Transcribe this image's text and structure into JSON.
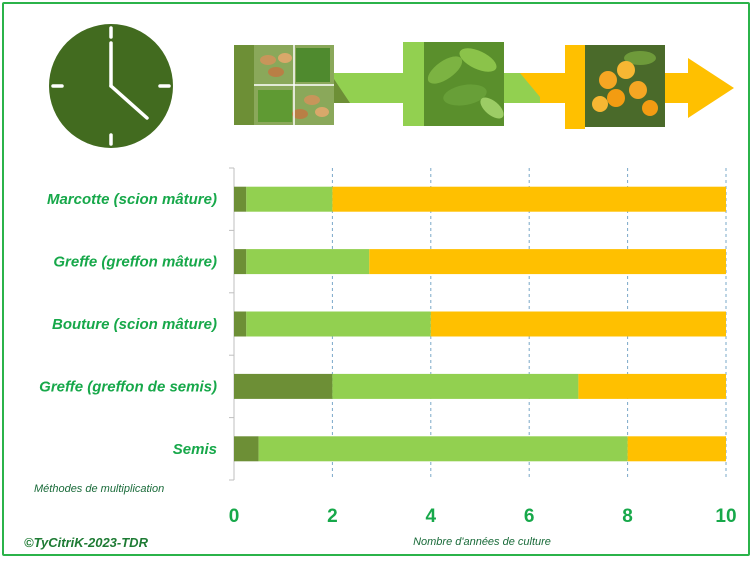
{
  "chart_data": {
    "type": "bar",
    "stacked": true,
    "orientation": "horizontal",
    "categories": [
      "Marcotte (scion mâture)",
      "Greffe (greffon mâture)",
      "Bouture (scion mâture)",
      "Greffe (greffon de semis)",
      "Semis"
    ],
    "series": [
      {
        "color": "#6d8f36",
        "values": [
          0.25,
          0.25,
          0.25,
          2.0,
          0.5
        ]
      },
      {
        "color": "#92d050",
        "values": [
          1.75,
          2.5,
          3.75,
          5.0,
          7.5
        ]
      },
      {
        "color": "#ffc000",
        "values": [
          8.0,
          7.25,
          6.0,
          3.0,
          2.0
        ]
      }
    ],
    "xticks": [
      "0",
      "2",
      "4",
      "6",
      "8",
      "10"
    ],
    "xlim": [
      0,
      10
    ],
    "xlabel": "Nombre d'années de culture",
    "ylabel": "Méthodes de multiplication",
    "grid": "vertical dashed"
  },
  "credit": "©TyCitriK-2023-TDR",
  "icons": [
    "clock-icon",
    "seeds-photo",
    "leaves-photo",
    "fruit-photo"
  ]
}
